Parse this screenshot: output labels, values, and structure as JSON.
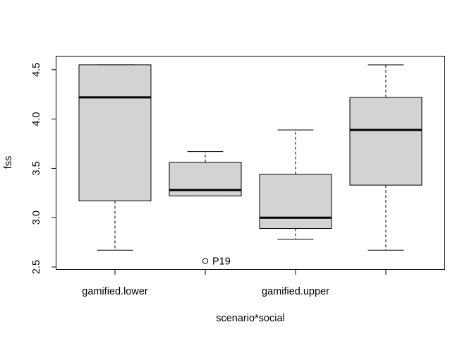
{
  "chart_data": {
    "type": "boxplot",
    "title": "",
    "xlabel": "scenario*social",
    "ylabel": "fss",
    "ylim": [
      2.5,
      4.6
    ],
    "y_ticks": [
      2.5,
      3.0,
      3.5,
      4.0,
      4.5
    ],
    "y_tick_labels": [
      "2.5",
      "3.0",
      "3.5",
      "4.0",
      "4.5"
    ],
    "x_tick_labels": [
      "gamified.lower",
      "",
      "gamified.upper",
      ""
    ],
    "box_fill": "#d3d3d3",
    "grid": false,
    "boxes": [
      {
        "whisker_low": 2.67,
        "q1": 3.17,
        "median": 4.22,
        "q3": 4.55,
        "whisker_high": 4.55,
        "outliers": []
      },
      {
        "whisker_low": 3.22,
        "q1": 3.22,
        "median": 3.28,
        "q3": 3.56,
        "whisker_high": 3.67,
        "outliers": [
          {
            "value": 2.56,
            "label": "P19"
          }
        ]
      },
      {
        "whisker_low": 2.78,
        "q1": 2.89,
        "median": 3.0,
        "q3": 3.44,
        "whisker_high": 3.89,
        "outliers": []
      },
      {
        "whisker_low": 2.67,
        "q1": 3.33,
        "median": 3.89,
        "q3": 4.22,
        "whisker_high": 4.55,
        "outliers": []
      }
    ]
  }
}
